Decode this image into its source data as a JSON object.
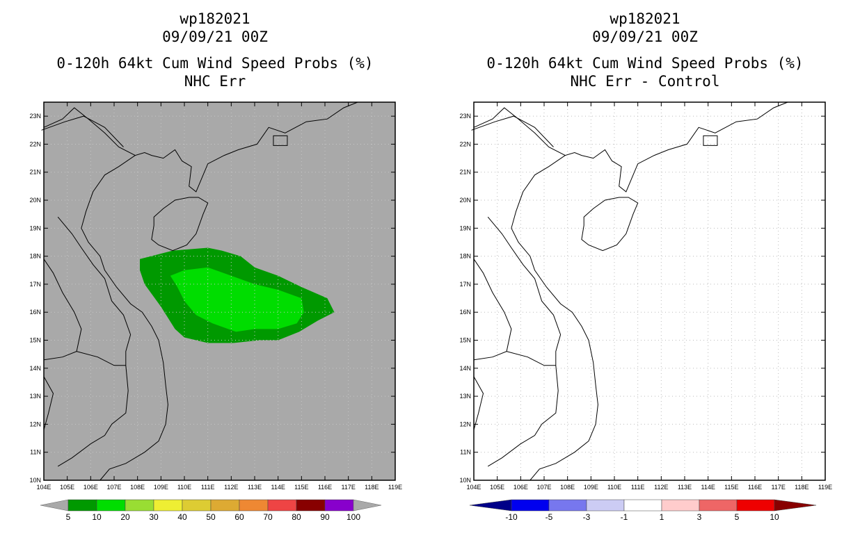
{
  "panels": [
    {
      "id": "left",
      "title_lines": [
        "wp182021",
        "09/09/21 00Z",
        "0-120h 64kt Cum Wind Speed Probs (%)",
        "NHC Err"
      ],
      "background": "#a9a9a9",
      "colorbar": {
        "labels": [
          "5",
          "10",
          "20",
          "30",
          "40",
          "50",
          "60",
          "70",
          "80",
          "90",
          "100"
        ],
        "colors": [
          "#a9a9a9",
          "#009900",
          "#00dd00",
          "#99dd33",
          "#eeee33",
          "#ddcc33",
          "#ddaa33",
          "#ee8833",
          "#ee4444",
          "#880000",
          "#8800cc",
          "#a9a9a9"
        ]
      }
    },
    {
      "id": "right",
      "title_lines": [
        "wp182021",
        "09/09/21 00Z",
        "0-120h 64kt Cum Wind Speed Probs (%)",
        "NHC Err - Control"
      ],
      "background": "#ffffff",
      "colorbar": {
        "labels": [
          "-10",
          "-5",
          "-3",
          "-1",
          "1",
          "3",
          "5",
          "10"
        ],
        "colors": [
          "#000088",
          "#0000ee",
          "#7777ee",
          "#ccccf4",
          "#ffffff",
          "#ffcccc",
          "#ee6666",
          "#ee0000",
          "#880000"
        ]
      }
    }
  ],
  "map": {
    "lon_range": [
      104,
      119
    ],
    "lat_range": [
      10,
      23.5
    ],
    "lon_ticks": [
      "104E",
      "105E",
      "106E",
      "107E",
      "108E",
      "109E",
      "110E",
      "111E",
      "112E",
      "113E",
      "114E",
      "115E",
      "116E",
      "117E",
      "118E",
      "119E"
    ],
    "lat_ticks": [
      "10N",
      "11N",
      "12N",
      "13N",
      "14N",
      "15N",
      "16N",
      "17N",
      "18N",
      "19N",
      "20N",
      "21N",
      "22N",
      "23N"
    ]
  },
  "prob_areas": [
    {
      "level": "5-10",
      "color": "#009900",
      "polygon": [
        [
          108.1,
          17.9
        ],
        [
          109.5,
          18.2
        ],
        [
          111.0,
          18.3
        ],
        [
          111.6,
          18.2
        ],
        [
          112.4,
          18.0
        ],
        [
          113.0,
          17.6
        ],
        [
          114.0,
          17.3
        ],
        [
          115.0,
          16.9
        ],
        [
          116.1,
          16.5
        ],
        [
          116.4,
          16.0
        ],
        [
          115.7,
          15.7
        ],
        [
          114.9,
          15.3
        ],
        [
          114.0,
          15.0
        ],
        [
          113.2,
          15.0
        ],
        [
          112.1,
          14.9
        ],
        [
          111.0,
          14.9
        ],
        [
          110.0,
          15.1
        ],
        [
          109.6,
          15.4
        ],
        [
          109.0,
          16.2
        ],
        [
          108.3,
          17.0
        ],
        [
          108.1,
          17.5
        ]
      ]
    },
    {
      "level": "10-20",
      "color": "#00dd00",
      "polygon": [
        [
          109.4,
          17.3
        ],
        [
          110.0,
          17.5
        ],
        [
          111.0,
          17.6
        ],
        [
          112.0,
          17.3
        ],
        [
          113.0,
          17.0
        ],
        [
          114.0,
          16.8
        ],
        [
          115.0,
          16.5
        ],
        [
          115.1,
          16.0
        ],
        [
          114.8,
          15.6
        ],
        [
          114.0,
          15.4
        ],
        [
          113.0,
          15.4
        ],
        [
          112.2,
          15.3
        ],
        [
          111.2,
          15.6
        ],
        [
          110.5,
          15.9
        ],
        [
          110.0,
          16.4
        ],
        [
          109.7,
          16.9
        ]
      ]
    }
  ]
}
